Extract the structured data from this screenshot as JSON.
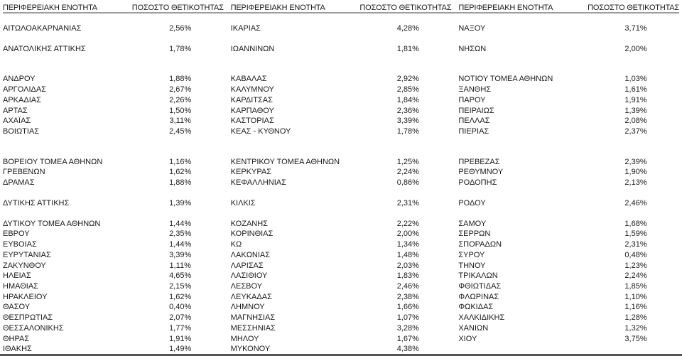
{
  "table": {
    "header": {
      "region_label": "ΠΕΡΙΦΕΡΕΙΑΚΗ ΕΝΟΤΗΤΑ",
      "positivity_label": "ΠΟΣΟΣΤΟ ΘΕΤΙΚΟΤΗΤΑΣ"
    },
    "colors": {
      "text": "#1a1a1a",
      "header_rule": "#9e9e9e",
      "bottom_rule": "#545454",
      "background": "#ffffff"
    },
    "rows": [
      {
        "blank": true
      },
      {
        "cells": [
          {
            "region": "ΑΙΤΩΛΟΑΚΑΡΝΑΝΙΑΣ",
            "value": "2,56%"
          },
          {
            "region": "ΙΚΑΡΙΑΣ",
            "value": "4,28%"
          },
          {
            "region": "ΝΑΞΟΥ",
            "value": "3,71%"
          }
        ]
      },
      {
        "blank": true
      },
      {
        "cells": [
          {
            "region": "ΑΝΑΤΟΛΙΚΗΣ ΑΤΤΙΚΗΣ",
            "value": "1,78%"
          },
          {
            "region": "ΙΩΑΝΝΙΝΩΝ",
            "value": "1,81%"
          },
          {
            "region": "ΝΗΣΩΝ",
            "value": "2,00%"
          }
        ]
      },
      {
        "blank": true
      },
      {
        "blank": true
      },
      {
        "cells": [
          {
            "region": "ΑΝΔΡΟΥ",
            "value": "1,88%"
          },
          {
            "region": "ΚΑΒΑΛΑΣ",
            "value": "2,92%"
          },
          {
            "region": "ΝΟΤΙΟΥ ΤΟΜΕΑ ΑΘΗΝΩΝ",
            "value": "1,03%"
          }
        ]
      },
      {
        "cells": [
          {
            "region": "ΑΡΓΟΛΙΔΑΣ",
            "value": "2,67%"
          },
          {
            "region": "ΚΑΛΥΜΝΟΥ",
            "value": "2,85%"
          },
          {
            "region": "ΞΑΝΘΗΣ",
            "value": "1,61%"
          }
        ]
      },
      {
        "cells": [
          {
            "region": "ΑΡΚΑΔΙΑΣ",
            "value": "2,26%"
          },
          {
            "region": "ΚΑΡΔΙΤΣΑΣ",
            "value": "1,84%"
          },
          {
            "region": "ΠΑΡΟΥ",
            "value": "1,91%"
          }
        ]
      },
      {
        "cells": [
          {
            "region": "ΑΡΤΑΣ",
            "value": "1,50%"
          },
          {
            "region": "ΚΑΡΠΑΘΟΥ",
            "value": "2,36%"
          },
          {
            "region": "ΠΕΙΡΑΙΩΣ",
            "value": "1,39%"
          }
        ]
      },
      {
        "cells": [
          {
            "region": "ΑΧΑΪΑΣ",
            "value": "3,11%"
          },
          {
            "region": "ΚΑΣΤΟΡΙΑΣ",
            "value": "3,39%"
          },
          {
            "region": "ΠΕΛΛΑΣ",
            "value": "2,08%"
          }
        ]
      },
      {
        "cells": [
          {
            "region": "ΒΟΙΩΤΙΑΣ",
            "value": "2,45%"
          },
          {
            "region": "ΚΕΑΣ - ΚΥΘΝΟΥ",
            "value": "1,78%"
          },
          {
            "region": "ΠΙΕΡΙΑΣ",
            "value": "2,37%"
          }
        ]
      },
      {
        "blank": true
      },
      {
        "blank": true
      },
      {
        "cells": [
          {
            "region": "ΒΟΡΕΙΟΥ ΤΟΜΕΑ ΑΘΗΝΩΝ",
            "value": "1,16%"
          },
          {
            "region": "ΚΕΝΤΡΙΚΟΥ ΤΟΜΕΑ ΑΘΗΝΩΝ",
            "value": "1,25%"
          },
          {
            "region": "ΠΡΕΒΕΖΑΣ",
            "value": "2,39%"
          }
        ]
      },
      {
        "cells": [
          {
            "region": "ΓΡΕΒΕΝΩΝ",
            "value": "1,62%"
          },
          {
            "region": "ΚΕΡΚΥΡΑΣ",
            "value": "2,24%"
          },
          {
            "region": "ΡΕΘΥΜΝΟΥ",
            "value": "1,90%"
          }
        ]
      },
      {
        "cells": [
          {
            "region": "ΔΡΑΜΑΣ",
            "value": "1,88%"
          },
          {
            "region": "ΚΕΦΑΛΛΗΝΙΑΣ",
            "value": "0,86%"
          },
          {
            "region": "ΡΟΔΟΠΗΣ",
            "value": "2,13%"
          }
        ]
      },
      {
        "blank": true
      },
      {
        "cells": [
          {
            "region": "ΔΥΤΙΚΗΣ ΑΤΤΙΚΗΣ",
            "value": "1,39%"
          },
          {
            "region": "ΚΙΛΚΙΣ",
            "value": "2,31%"
          },
          {
            "region": "ΡΟΔΟΥ",
            "value": "2,46%"
          }
        ]
      },
      {
        "blank": true
      },
      {
        "cells": [
          {
            "region": "ΔΥΤΙΚΟΥ ΤΟΜΕΑ ΑΘΗΝΩΝ",
            "value": "1,44%"
          },
          {
            "region": "ΚΟΖΑΝΗΣ",
            "value": "2,22%"
          },
          {
            "region": "ΣΑΜΟΥ",
            "value": "1,68%"
          }
        ]
      },
      {
        "cells": [
          {
            "region": "ΕΒΡΟΥ",
            "value": "2,35%"
          },
          {
            "region": "ΚΟΡΙΝΘΙΑΣ",
            "value": "2,00%"
          },
          {
            "region": "ΣΕΡΡΩΝ",
            "value": "1,59%"
          }
        ]
      },
      {
        "cells": [
          {
            "region": "ΕΥΒΟΙΑΣ",
            "value": "1,44%"
          },
          {
            "region": "ΚΩ",
            "value": "1,34%"
          },
          {
            "region": "ΣΠΟΡΑΔΩΝ",
            "value": "2,31%"
          }
        ]
      },
      {
        "cells": [
          {
            "region": "ΕΥΡΥΤΑΝΙΑΣ",
            "value": "3,39%"
          },
          {
            "region": "ΛΑΚΩΝΙΑΣ",
            "value": "1,48%"
          },
          {
            "region": "ΣΥΡΟΥ",
            "value": "0,48%"
          }
        ]
      },
      {
        "cells": [
          {
            "region": "ΖΑΚΥΝΘΟΥ",
            "value": "1,11%"
          },
          {
            "region": "ΛΑΡΙΣΑΣ",
            "value": "2,03%"
          },
          {
            "region": "ΤΗΝΟΥ",
            "value": "1,23%"
          }
        ]
      },
      {
        "cells": [
          {
            "region": "ΗΛΕΙΑΣ",
            "value": "4,65%"
          },
          {
            "region": "ΛΑΣΙΘΙΟΥ",
            "value": "1,83%"
          },
          {
            "region": "ΤΡΙΚΑΛΩΝ",
            "value": "2,24%"
          }
        ]
      },
      {
        "cells": [
          {
            "region": "ΗΜΑΘΙΑΣ",
            "value": "2,15%"
          },
          {
            "region": "ΛΕΣΒΟΥ",
            "value": "2,46%"
          },
          {
            "region": "ΦΘΙΩΤΙΔΑΣ",
            "value": "1,85%"
          }
        ]
      },
      {
        "cells": [
          {
            "region": "ΗΡΑΚΛΕΙΟΥ",
            "value": "1,62%"
          },
          {
            "region": "ΛΕΥΚΑΔΑΣ",
            "value": "2,38%"
          },
          {
            "region": "ΦΛΩΡΙΝΑΣ",
            "value": "1,10%"
          }
        ]
      },
      {
        "cells": [
          {
            "region": "ΘΑΣΟΥ",
            "value": "0,40%"
          },
          {
            "region": "ΛΗΜΝΟΥ",
            "value": "1,66%"
          },
          {
            "region": "ΦΩΚΙΔΑΣ",
            "value": "1,16%"
          }
        ]
      },
      {
        "cells": [
          {
            "region": "ΘΕΣΠΡΩΤΙΑΣ",
            "value": "2,07%"
          },
          {
            "region": "ΜΑΓΝΗΣΙΑΣ",
            "value": "1,07%"
          },
          {
            "region": "ΧΑΛΚΙΔΙΚΗΣ",
            "value": "1,28%"
          }
        ]
      },
      {
        "cells": [
          {
            "region": "ΘΕΣΣΑΛΟΝΙΚΗΣ",
            "value": "1,77%"
          },
          {
            "region": "ΜΕΣΣΗΝΙΑΣ",
            "value": "3,28%"
          },
          {
            "region": "ΧΑΝΙΩΝ",
            "value": "1,32%"
          }
        ]
      },
      {
        "cells": [
          {
            "region": "ΘΗΡΑΣ",
            "value": "1,91%"
          },
          {
            "region": "ΜΗΛΟΥ",
            "value": "1,67%"
          },
          {
            "region": "ΧΙΟΥ",
            "value": "3,75%"
          }
        ]
      },
      {
        "cells": [
          {
            "region": "ΙΘΑΚΗΣ",
            "value": "1,49%"
          },
          {
            "region": "ΜΥΚΟΝΟΥ",
            "value": "4,38%"
          },
          {
            "region": "",
            "value": ""
          }
        ]
      }
    ]
  }
}
